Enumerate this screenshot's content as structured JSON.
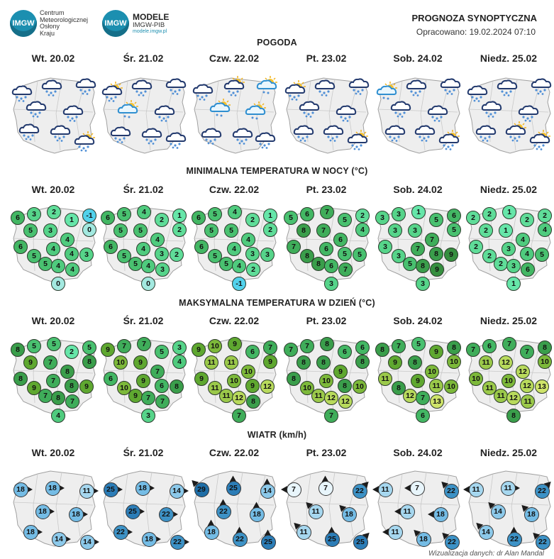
{
  "header": {
    "logo1_badge": "IMGW",
    "logo1_lines": [
      "Centrum",
      "Meteorologicznej",
      "Osłony",
      "Kraju"
    ],
    "logo2_badge": "IMGW",
    "logo2_title": "MODELE",
    "logo2_sub": "IMGW-PIB",
    "logo2_url": "modele.imgw.pl",
    "title": "PROGNOZA SYNOPTYCZNA",
    "prepared": "Opracowano: 19.02.2024 07:10"
  },
  "days": [
    "Wt. 20.02",
    "Śr. 21.02",
    "Czw. 22.02",
    "Pt. 23.02",
    "Sob. 24.02",
    "Niedz. 25.02"
  ],
  "sections": {
    "weather": "POGODA",
    "tmin": "MINIMALNA TEMPERATURA W NOCY (°C)",
    "tmax": "MAKSYMALNA TEMPERATURA W DZIEŃ (°C)",
    "wind": "WIATR (km/h)"
  },
  "tmin": [
    [
      "6",
      "3",
      "2",
      "1",
      "-1",
      "0",
      "5",
      "3",
      "4",
      "6",
      "5",
      "4",
      "4",
      "3",
      "5",
      "4",
      "4",
      "0"
    ],
    [
      "6",
      "5",
      "4",
      "2",
      "1",
      "2",
      "5",
      "5",
      "4",
      "6",
      "5",
      "4",
      "3",
      "2",
      "5",
      "4",
      "3",
      "0"
    ],
    [
      "6",
      "5",
      "4",
      "2",
      "1",
      "2",
      "5",
      "5",
      "4",
      "6",
      "5",
      "4",
      "3",
      "3",
      "5",
      "4",
      "2",
      "-1"
    ],
    [
      "5",
      "6",
      "7",
      "5",
      "2",
      "4",
      "8",
      "7",
      "6",
      "7",
      "8",
      "6",
      "5",
      "5",
      "8",
      "6",
      "7",
      "3"
    ],
    [
      "3",
      "3",
      "1",
      "5",
      "6",
      "5",
      "3",
      "3",
      "7",
      "3",
      "3",
      "7",
      "8",
      "9",
      "5",
      "8",
      "9",
      "3"
    ],
    [
      "2",
      "2",
      "1",
      "2",
      "2",
      "4",
      "2",
      "1",
      "4",
      "2",
      "2",
      "3",
      "4",
      "5",
      "2",
      "3",
      "6",
      "1"
    ]
  ],
  "tmax": [
    [
      "8",
      "5",
      "5",
      "2",
      "5",
      "8",
      "9",
      "7",
      "8",
      "8",
      "9",
      "7",
      "8",
      "9",
      "7",
      "8",
      "7",
      "4"
    ],
    [
      "9",
      "7",
      "7",
      "5",
      "3",
      "4",
      "10",
      "9",
      "7",
      "6",
      "10",
      "9",
      "6",
      "8",
      "9",
      "7",
      "7",
      "3"
    ],
    [
      "9",
      "10",
      "9",
      "6",
      "7",
      "9",
      "11",
      "11",
      "10",
      "9",
      "11",
      "10",
      "9",
      "12",
      "11",
      "12",
      "8",
      "7"
    ],
    [
      "7",
      "7",
      "8",
      "6",
      "6",
      "8",
      "8",
      "8",
      "9",
      "8",
      "10",
      "10",
      "8",
      "10",
      "11",
      "12",
      "12",
      "7"
    ],
    [
      "8",
      "7",
      "5",
      "9",
      "8",
      "10",
      "9",
      "8",
      "10",
      "11",
      "8",
      "9",
      "11",
      "10",
      "12",
      "7",
      "13",
      "6"
    ],
    [
      "7",
      "6",
      "7",
      "7",
      "8",
      "10",
      "11",
      "12",
      "12",
      "10",
      "11",
      "10",
      "12",
      "13",
      "11",
      "12",
      "11",
      "8"
    ]
  ],
  "wind": [
    [
      "18",
      "18",
      "11",
      "18",
      "18",
      "18",
      "14",
      "14"
    ],
    [
      "25",
      "18",
      "14",
      "25",
      "22",
      "22",
      "18",
      "22"
    ],
    [
      "29",
      "25",
      "14",
      "22",
      "18",
      "18",
      "22",
      "25"
    ],
    [
      "7",
      "7",
      "22",
      "11",
      "18",
      "11",
      "25",
      "25"
    ],
    [
      "11",
      "7",
      "22",
      "11",
      "18",
      "11",
      "18",
      "22"
    ],
    [
      "11",
      "11",
      "22",
      "14",
      "18",
      "14",
      "22",
      "22"
    ]
  ],
  "weather_icons": "cloud-snow-icon, sun-cloud-icon, cloud-rain-icon",
  "colors": {
    "min": {
      "-1": "#52d2ec",
      "0": "#a3e9e0",
      "1": "#66e6a9",
      "2": "#5fdd99",
      "3": "#56d48a",
      "4": "#4fcb7e",
      "5": "#49c170",
      "6": "#43b764",
      "7": "#3fad5a",
      "8": "#3a9e4b",
      "9": "#368f3f"
    },
    "max": {
      "2": "#66e6a9",
      "3": "#56d48a",
      "4": "#4fcb7e",
      "5": "#49c170",
      "6": "#43b764",
      "7": "#3fad5a",
      "8": "#3a9e4b",
      "9": "#5fa830",
      "10": "#7db93a",
      "11": "#9bc94a",
      "12": "#b8da5c",
      "13": "#cfe46a"
    },
    "wind": {
      "7": "#e8f5fb",
      "11": "#a6d7ef",
      "14": "#8cc9ea",
      "18": "#74bce5",
      "22": "#3d92c6",
      "25": "#2c7db7",
      "29": "#1f6ea7"
    }
  },
  "credit": "Wizualizacja danych: dr Alan Mandal"
}
